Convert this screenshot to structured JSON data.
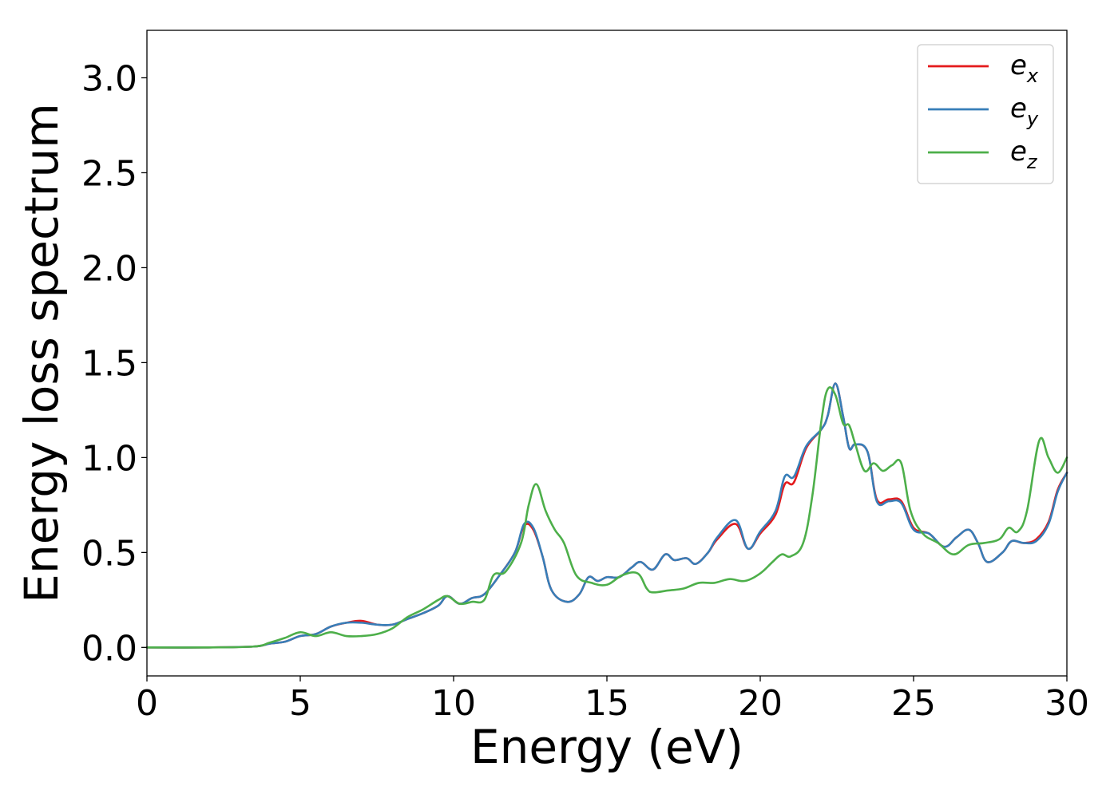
{
  "chart_data": {
    "type": "line",
    "title": "",
    "xlabel": "Energy (eV)",
    "ylabel": "Energy loss spectrum",
    "xlim": [
      0,
      30
    ],
    "ylim": [
      -0.15,
      3.25
    ],
    "xticks": [
      0,
      5,
      10,
      15,
      20,
      25,
      30
    ],
    "xtick_labels": [
      "0",
      "5",
      "10",
      "15",
      "20",
      "25",
      "30"
    ],
    "yticks": [
      0.0,
      0.5,
      1.0,
      1.5,
      2.0,
      2.5,
      3.0
    ],
    "ytick_labels": [
      "0.0",
      "0.5",
      "1.0",
      "1.5",
      "2.0",
      "2.5",
      "3.0"
    ],
    "grid": false,
    "legend_position": "top-right",
    "series": [
      {
        "name": "e_x",
        "legend_base": "e",
        "legend_sub": "x",
        "color": "#e41a1c",
        "x": [
          0,
          2,
          3.5,
          4,
          4.5,
          5,
          5.5,
          6,
          6.5,
          7,
          7.5,
          8,
          8.5,
          9,
          9.5,
          9.8,
          10.2,
          10.6,
          11,
          11.5,
          12,
          12.3,
          12.6,
          12.9,
          13.2,
          13.7,
          14.1,
          14.4,
          14.7,
          15,
          15.4,
          15.8,
          16.1,
          16.5,
          16.9,
          17.2,
          17.6,
          17.9,
          18.3,
          18.6,
          19.2,
          19.6,
          20,
          20.5,
          20.8,
          21.1,
          21.5,
          22,
          22.2,
          22.45,
          22.7,
          22.9,
          23.1,
          23.5,
          23.8,
          24.2,
          24.6,
          25,
          25.5,
          26,
          26.4,
          26.8,
          27.1,
          27.4,
          27.9,
          28.2,
          28.6,
          29,
          29.4,
          29.7,
          30
        ],
        "y": [
          0,
          0,
          0.005,
          0.02,
          0.03,
          0.06,
          0.07,
          0.11,
          0.13,
          0.14,
          0.12,
          0.12,
          0.15,
          0.18,
          0.22,
          0.27,
          0.23,
          0.26,
          0.28,
          0.38,
          0.5,
          0.64,
          0.62,
          0.48,
          0.3,
          0.24,
          0.28,
          0.37,
          0.35,
          0.37,
          0.37,
          0.42,
          0.45,
          0.41,
          0.49,
          0.46,
          0.47,
          0.44,
          0.5,
          0.57,
          0.65,
          0.52,
          0.6,
          0.7,
          0.86,
          0.87,
          1.05,
          1.15,
          1.22,
          1.39,
          1.22,
          1.05,
          1.07,
          1.03,
          0.78,
          0.78,
          0.77,
          0.63,
          0.6,
          0.53,
          0.58,
          0.62,
          0.55,
          0.45,
          0.5,
          0.56,
          0.55,
          0.57,
          0.66,
          0.83,
          0.92
        ]
      },
      {
        "name": "e_y",
        "legend_base": "e",
        "legend_sub": "y",
        "color": "#377eb8",
        "x": [
          0,
          2,
          3.5,
          4,
          4.5,
          5,
          5.5,
          6,
          6.5,
          7,
          7.5,
          8,
          8.5,
          9,
          9.5,
          9.8,
          10.2,
          10.6,
          11,
          11.5,
          12,
          12.3,
          12.6,
          12.9,
          13.2,
          13.7,
          14.1,
          14.4,
          14.7,
          15,
          15.4,
          15.8,
          16.1,
          16.5,
          16.9,
          17.2,
          17.6,
          17.9,
          18.3,
          18.6,
          19.2,
          19.6,
          20,
          20.5,
          20.8,
          21.1,
          21.5,
          22,
          22.2,
          22.45,
          22.7,
          22.9,
          23.1,
          23.5,
          23.8,
          24.2,
          24.6,
          25,
          25.5,
          26,
          26.4,
          26.8,
          27.1,
          27.4,
          27.9,
          28.2,
          28.6,
          29,
          29.4,
          29.7,
          30
        ],
        "y": [
          0,
          0,
          0.005,
          0.02,
          0.03,
          0.06,
          0.07,
          0.11,
          0.13,
          0.13,
          0.12,
          0.12,
          0.15,
          0.18,
          0.22,
          0.27,
          0.23,
          0.26,
          0.28,
          0.38,
          0.5,
          0.65,
          0.63,
          0.48,
          0.3,
          0.24,
          0.28,
          0.37,
          0.35,
          0.37,
          0.37,
          0.42,
          0.45,
          0.41,
          0.49,
          0.46,
          0.47,
          0.44,
          0.5,
          0.58,
          0.67,
          0.52,
          0.61,
          0.72,
          0.9,
          0.9,
          1.06,
          1.15,
          1.22,
          1.39,
          1.22,
          1.05,
          1.07,
          1.03,
          0.77,
          0.77,
          0.76,
          0.62,
          0.6,
          0.53,
          0.58,
          0.62,
          0.55,
          0.45,
          0.5,
          0.56,
          0.55,
          0.56,
          0.65,
          0.82,
          0.92
        ]
      },
      {
        "name": "e_z",
        "legend_base": "e",
        "legend_sub": "z",
        "color": "#4daf4a",
        "x": [
          0,
          2,
          3.5,
          4,
          4.5,
          5,
          5.5,
          6,
          6.5,
          7,
          7.5,
          8,
          8.5,
          9,
          9.5,
          9.8,
          10.2,
          10.6,
          11,
          11.3,
          11.7,
          12.2,
          12.45,
          12.7,
          13,
          13.3,
          13.6,
          14,
          14.5,
          15,
          15.5,
          16,
          16.3,
          16.5,
          17,
          17.5,
          18,
          18.5,
          19,
          19.5,
          20,
          20.4,
          20.7,
          21,
          21.4,
          21.7,
          22,
          22.2,
          22.45,
          22.7,
          22.9,
          23.1,
          23.4,
          23.7,
          24,
          24.3,
          24.6,
          24.9,
          25.3,
          25.8,
          26.3,
          26.8,
          27.3,
          27.8,
          28.1,
          28.4,
          28.7,
          29.1,
          29.4,
          29.7,
          30
        ],
        "y": [
          0,
          0,
          0.005,
          0.025,
          0.05,
          0.08,
          0.06,
          0.08,
          0.06,
          0.06,
          0.07,
          0.1,
          0.16,
          0.2,
          0.25,
          0.27,
          0.23,
          0.24,
          0.25,
          0.38,
          0.4,
          0.55,
          0.75,
          0.86,
          0.72,
          0.62,
          0.55,
          0.38,
          0.34,
          0.33,
          0.38,
          0.39,
          0.31,
          0.29,
          0.3,
          0.31,
          0.34,
          0.34,
          0.36,
          0.35,
          0.39,
          0.45,
          0.49,
          0.48,
          0.55,
          0.8,
          1.2,
          1.36,
          1.33,
          1.18,
          1.17,
          1.07,
          0.93,
          0.97,
          0.93,
          0.96,
          0.97,
          0.72,
          0.6,
          0.55,
          0.49,
          0.54,
          0.55,
          0.57,
          0.63,
          0.61,
          0.72,
          1.09,
          1.0,
          0.92,
          1.0
        ]
      }
    ]
  }
}
